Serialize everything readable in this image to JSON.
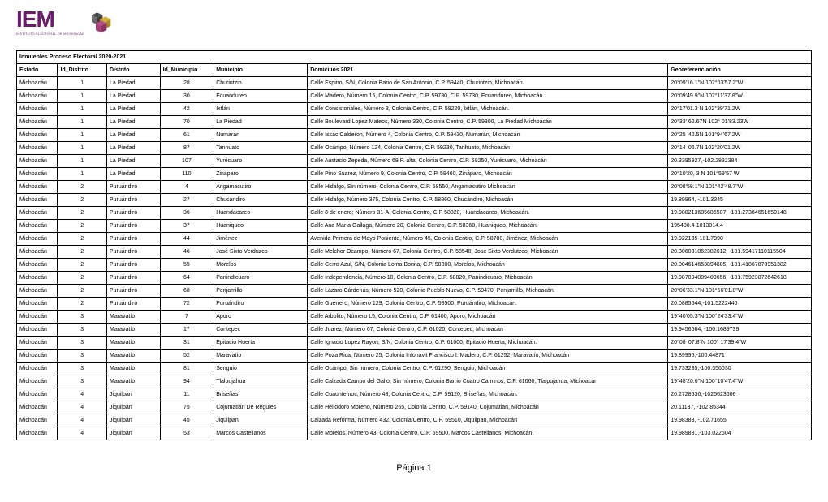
{
  "logo": {
    "text": "IEM",
    "subtitle": "INSTITUTO ELECTORAL DE MICHOACÁN",
    "colors": {
      "text": "#6a1b6a",
      "cube1": "#d4b13b",
      "cube2": "#4a4a4a",
      "cube3": "#b84f8a"
    }
  },
  "title": "Inmuebles Proceso Electoral 2020-2021",
  "footer": "Página 1",
  "columns": [
    "Estado",
    "Id_Distrito",
    "Distrito",
    "Id_Municipio",
    "Municipio",
    "Domicilios 2021",
    "Georeferenciación"
  ],
  "rows": [
    {
      "estado": "Michoacán",
      "id_distrito": "1",
      "distrito": "La Piedad",
      "id_municipio": "28",
      "municipio": "Churintzio",
      "domicilio": "Calle Espino, S/N, Colonia Bario de San Antonio, C.P. 59440, Churintzio, Michoacán.",
      "georef": "20°09'16.1\"N 102°03'57.2\"W"
    },
    {
      "estado": "Michoacán",
      "id_distrito": "1",
      "distrito": "La Piedad",
      "id_municipio": "30",
      "municipio": "Ecuandureo",
      "domicilio": "Calle Madero, Número 15, Colonia Centro, C.P. 59730, C.P. 59730, Ecuandureo, Michoacán.",
      "georef": "20°09'49.9\"N 102°11'37.8\"W"
    },
    {
      "estado": "Michoacán",
      "id_distrito": "1",
      "distrito": "La Piedad",
      "id_municipio": "42",
      "municipio": "Ixtlán",
      "domicilio": "Calle Consistoriales, Número 3, Colonia Centro, C.P. 59220, Ixtlán, Michoacán.",
      "georef": "20°17'01.3 N 102°39'71.2W"
    },
    {
      "estado": "Michoacán",
      "id_distrito": "1",
      "distrito": "La Piedad",
      "id_municipio": "70",
      "municipio": "La Piedad",
      "domicilio": "Calle Boulevard Lopez Mateos, Número 330, Colonia Centro, C.P. 59300, La Piedad Michoacán",
      "georef": "20°33' 62.67N 102° 01'83.23W"
    },
    {
      "estado": "Michoacán",
      "id_distrito": "1",
      "distrito": "La Piedad",
      "id_municipio": "61",
      "municipio": "Numarán",
      "domicilio": "Calle Issac Calderon, Número 4, Colonia Centro, C.P. 59430, Numarán, Michoacán",
      "georef": "20°25 '42.5N 101°94'67.2W"
    },
    {
      "estado": "Michoacán",
      "id_distrito": "1",
      "distrito": "La Piedad",
      "id_municipio": "87",
      "municipio": "Tanhuato",
      "domicilio": "Calle Ocampo, Número 124, Colonia Centro, C.P. 59230, Tanhuato, Michoacán",
      "georef": "20°14 '06.7N 102°20'01.2W"
    },
    {
      "estado": "Michoacán",
      "id_distrito": "1",
      "distrito": "La Piedad",
      "id_municipio": "107",
      "municipio": "Yurécuaro",
      "domicilio": "Calle Austacio Zepeda, Número 68 P. alta, Colonia Centro, C.P. 59250, Yurécuaro, Michoacán",
      "georef": "20.3395927,-102.2832384"
    },
    {
      "estado": "Michoacán",
      "id_distrito": "1",
      "distrito": "La Piedad",
      "id_municipio": "110",
      "municipio": "Zináparo",
      "domicilio": "Calle Pino Suarez, Número 9, Colonia Centro, C.P. 59460, Zináparo, Michoacán",
      "georef": "20°10'20, 3 N 101°59'57 W"
    },
    {
      "estado": "Michoacán",
      "id_distrito": "2",
      "distrito": "Puruándiro",
      "id_municipio": "4",
      "municipio": "Angamacutiro",
      "domicilio": "Calle Hidalgo, Sin número, Colonia Centro, C.P. 58550, Angamacutiro Michoacán",
      "georef": "20°08'58.1\"N 101°42'48.7\"W"
    },
    {
      "estado": "Michoacán",
      "id_distrito": "2",
      "distrito": "Puruándiro",
      "id_municipio": "27",
      "municipio": "Chucándiro",
      "domicilio": "Calle Hidalgo, Número 375, Colonia Centro, C.P. 58860, Chucándiro, Michoacán",
      "georef": "19.89964, -101.3345"
    },
    {
      "estado": "Michoacán",
      "id_distrito": "2",
      "distrito": "Puruándiro",
      "id_municipio": "36",
      "municipio": "Huandacareo",
      "domicilio": "Calle 8 de enero; Número 31-A, Colonia Centro, C.P 58820, Huandacareo, Michoacán.",
      "georef": "19.988213685686507, -101.27384651650148"
    },
    {
      "estado": "Michoacán",
      "id_distrito": "2",
      "distrito": "Puruándiro",
      "id_municipio": "37",
      "municipio": "Huaniqueo",
      "domicilio": "Calle Ana María Gallaga, Número 20, Colonia Centro, C.P. 58360, Huaniqueo, Michoacán.",
      "georef": "195400.4-1013014.4"
    },
    {
      "estado": "Michoacán",
      "id_distrito": "2",
      "distrito": "Puruándiro",
      "id_municipio": "44",
      "municipio": "Jiménez",
      "domicilio": "Avenida Primera de Mayo Poniente, Número 45, Colonia Centro, C.P. 58780, Jiménez, Michoacán",
      "georef": "19.922135-101.7990"
    },
    {
      "estado": "Michoacán",
      "id_distrito": "2",
      "distrito": "Puruándiro",
      "id_municipio": "46",
      "municipio": "José Sixto Verduzco",
      "domicilio": "Calle Melchor Ocampo, Número 67, Colonia Centro, C.P. 58540, Jose Sixto Verdutzco, Michoacán",
      "georef": "20.306031062382612, -101.59417110115504"
    },
    {
      "estado": "Michoacán",
      "id_distrito": "2",
      "distrito": "Puruándiro",
      "id_municipio": "55",
      "municipio": "Morelos",
      "domicilio": "Calle Cerro Azul, S/N, Colonia Loma Bonita, C.P. 58800, Morelos, Michoacán",
      "georef": "20.004614653894805, -101.41867878951382"
    },
    {
      "estado": "Michoacán",
      "id_distrito": "2",
      "distrito": "Puruándiro",
      "id_municipio": "64",
      "municipio": "Panindícuaro",
      "domicilio": "Calle Independencia, Número 10, Colonia Centro, C.P. 58820, Panindicuaro, Michoacán",
      "georef": "19.987094089409656, -101.75923872642618"
    },
    {
      "estado": "Michoacán",
      "id_distrito": "2",
      "distrito": "Puruándiro",
      "id_municipio": "68",
      "municipio": "Penjamillo",
      "domicilio": "Calle Lázaro Cárdenas, Número 520, Colonia Pueblo Nuevo, C.P. 59470, Penjamillo, Michoacán.",
      "georef": "20°06'33.1\"N 101°56'01.8\"W"
    },
    {
      "estado": "Michoacán",
      "id_distrito": "2",
      "distrito": "Puruándiro",
      "id_municipio": "72",
      "municipio": "Puruándiro",
      "domicilio": "Calle Guerrero, Número 129, Colonia Centro, C.P. 58500, Puruándiro, Michoacán.",
      "georef": "20.0885644,-101.5222440"
    },
    {
      "estado": "Michoacán",
      "id_distrito": "3",
      "distrito": "Maravatío",
      "id_municipio": "7",
      "municipio": "Aporo",
      "domicilio": "Calle Arbolito, Número L5, Colonia Centro, C.P. 61400, Aporo, Michoacán",
      "georef": "19°40'05.3\"N 100°24'33.4\"W"
    },
    {
      "estado": "Michoacán",
      "id_distrito": "3",
      "distrito": "Maravatío",
      "id_municipio": "17",
      "municipio": "Contepec",
      "domicilio": "Calle Juarez, Número 67, Colonia Centro, C.P. 61020, Contepec, Michoacán",
      "georef": "19.9456564, -100.1689739"
    },
    {
      "estado": "Michoacán",
      "id_distrito": "3",
      "distrito": "Maravatío",
      "id_municipio": "31",
      "municipio": "Epitacio Huerta",
      "domicilio": "Calle Ignacio Lopez Rayon, S/N, Colonia Centro, C.P. 61000, Epitacio Huerta, Michoacán.",
      "georef": "20°08 '07.8\"N 100° 17'39.4\"W"
    },
    {
      "estado": "Michoacán",
      "id_distrito": "3",
      "distrito": "Maravatío",
      "id_municipio": "52",
      "municipio": "Maravatío",
      "domicilio": "Calle Poza Rica, Número 25, Colonia Infonavit Francisco I. Madero, C.P. 61252, Maravatío, Michoacán",
      "georef": "19.89995,-100.44871"
    },
    {
      "estado": "Michoacán",
      "id_distrito": "3",
      "distrito": "Maravatío",
      "id_municipio": "81",
      "municipio": "Senguio",
      "domicilio": "Calle Ocampo, Sin número, Colonia Centro, C.P. 61290, Senguio, Michoacán",
      "georef": "19.733235,-100.356030"
    },
    {
      "estado": "Michoacán",
      "id_distrito": "3",
      "distrito": "Maravatío",
      "id_municipio": "94",
      "municipio": "Tlalpujahua",
      "domicilio": "Calle Calzada Campo del Gallo, Sin número, Colonia Barrio Cuatro Caminos, C.P. 61060, Tlalpujahua, Michoacán",
      "georef": "19°48'20.6\"N 100°10'47.4\"W",
      "tall": true
    },
    {
      "estado": "Michoacán",
      "id_distrito": "4",
      "distrito": "Jiquilpan",
      "id_municipio": "11",
      "municipio": "Briseñas",
      "domicilio": "Calle Cuauhtemoc, Número 48, Colonia Centro, C.P. 59120, Briseñas, Michoacán.",
      "georef": "20.2728536,-1025623606"
    },
    {
      "estado": "Michoacán",
      "id_distrito": "4",
      "distrito": "Jiquilpan",
      "id_municipio": "75",
      "municipio": "Cojumatlán De Régules",
      "domicilio": "Calle Heliodoro Moreno, Número 265, Colonia Centro, C.P. 59140, Cojumatlan, Michoacán",
      "georef": "20.11137, -102.85344"
    },
    {
      "estado": "Michoacán",
      "id_distrito": "4",
      "distrito": "Jiquilpan",
      "id_municipio": "45",
      "municipio": "Jiquilpan",
      "domicilio": "Calzada Reforma, Número 432, Colonia Centro, C.P. 59510, Jiquilpan, Michoacán",
      "georef": "19.98383, -102.71655"
    },
    {
      "estado": "Michoacán",
      "id_distrito": "4",
      "distrito": "Jiquilpan",
      "id_municipio": "53",
      "municipio": "Marcos Castellanos",
      "domicilio": "Calle Morelos, Número 43, Colonia Centro, C.P. 59500, Marcos Castellanos, Michoacán.",
      "georef": "19.989881,-103.022604"
    }
  ]
}
